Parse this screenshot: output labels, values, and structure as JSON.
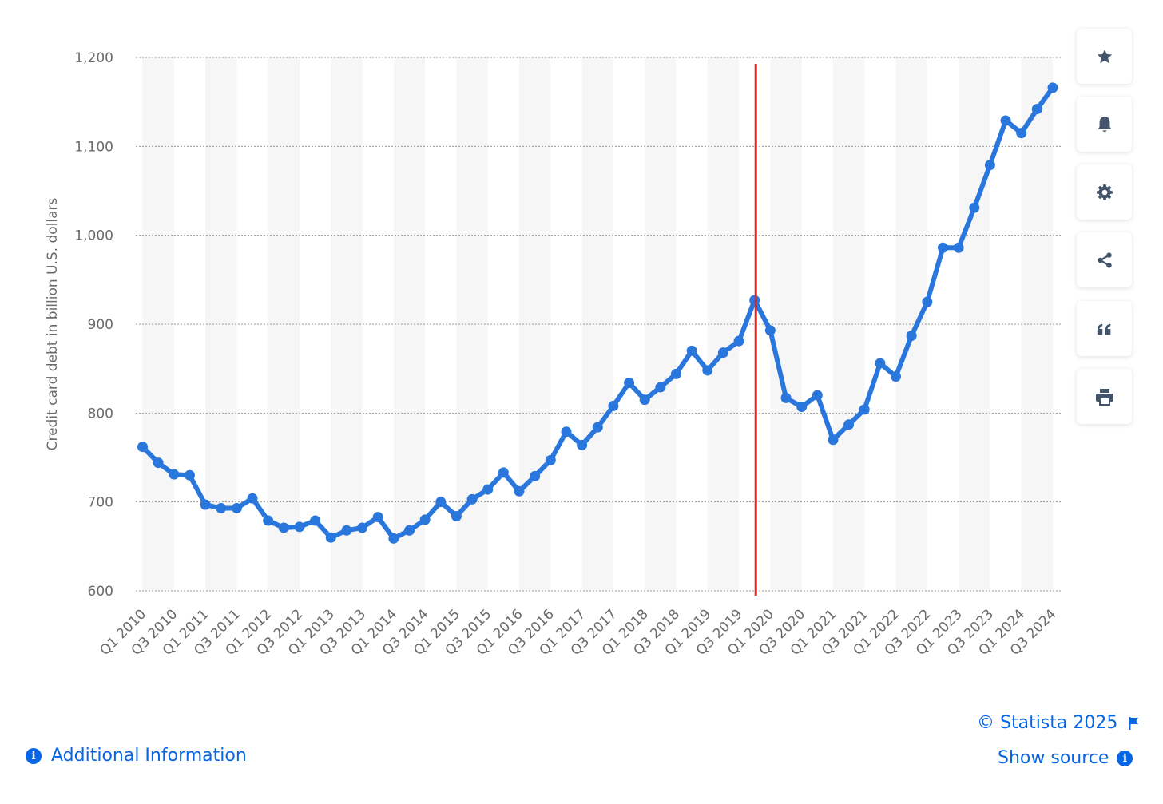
{
  "chart_data": {
    "type": "line",
    "ylabel": "Credit card debt in billion U.S. dollars",
    "xlabel": "",
    "ylim": [
      600,
      1200
    ],
    "yticks": [
      600,
      700,
      800,
      900,
      1000,
      1100,
      1200
    ],
    "ytick_labels": [
      "600",
      "700",
      "800",
      "900",
      "1,000",
      "1,100",
      "1,200"
    ],
    "grid": "horizontal dotted",
    "categories": [
      "Q1 2010",
      "Q2 2010",
      "Q3 2010",
      "Q4 2010",
      "Q1 2011",
      "Q2 2011",
      "Q3 2011",
      "Q4 2011",
      "Q1 2012",
      "Q2 2012",
      "Q3 2012",
      "Q4 2012",
      "Q1 2013",
      "Q2 2013",
      "Q3 2013",
      "Q4 2013",
      "Q1 2014",
      "Q2 2014",
      "Q3 2014",
      "Q4 2014",
      "Q1 2015",
      "Q2 2015",
      "Q3 2015",
      "Q4 2015",
      "Q1 2016",
      "Q2 2016",
      "Q3 2016",
      "Q4 2016",
      "Q1 2017",
      "Q2 2017",
      "Q3 2017",
      "Q4 2017",
      "Q1 2018",
      "Q2 2018",
      "Q3 2018",
      "Q4 2018",
      "Q1 2019",
      "Q2 2019",
      "Q3 2019",
      "Q4 2019",
      "Q1 2020",
      "Q2 2020",
      "Q3 2020",
      "Q4 2020",
      "Q1 2021",
      "Q2 2021",
      "Q3 2021",
      "Q4 2021",
      "Q1 2022",
      "Q2 2022",
      "Q3 2022",
      "Q4 2022",
      "Q1 2023",
      "Q2 2023",
      "Q3 2023",
      "Q4 2023",
      "Q1 2024",
      "Q2 2024",
      "Q3 2024"
    ],
    "xtick_labels": [
      "Q1 2010",
      "Q3 2010",
      "Q1 2011",
      "Q3 2011",
      "Q1 2012",
      "Q3 2012",
      "Q1 2013",
      "Q3 2013",
      "Q1 2014",
      "Q3 2014",
      "Q1 2015",
      "Q3 2015",
      "Q1 2016",
      "Q3 2016",
      "Q1 2017",
      "Q3 2017",
      "Q1 2018",
      "Q3 2018",
      "Q1 2019",
      "Q3 2019",
      "Q1 2020",
      "Q3 2020",
      "Q1 2021",
      "Q3 2021",
      "Q1 2022",
      "Q3 2022",
      "Q1 2023",
      "Q3 2023",
      "Q1 2024",
      "Q3 2024"
    ],
    "series": [
      {
        "values": [
          762,
          744,
          731,
          730,
          697,
          693,
          693,
          704,
          679,
          671,
          672,
          679,
          660,
          668,
          671,
          683,
          659,
          668,
          680,
          700,
          684,
          703,
          714,
          733,
          712,
          729,
          747,
          779,
          764,
          784,
          808,
          834,
          815,
          829,
          844,
          870,
          848,
          868,
          881,
          927,
          893,
          817,
          807,
          820,
          770,
          787,
          804,
          856,
          841,
          887,
          925,
          986,
          986,
          1031,
          1079,
          1129,
          1115,
          1142,
          1166
        ]
      }
    ],
    "marker_line": {
      "after_category": "Q4 2019",
      "color": "#e8221a"
    },
    "line_color": "#2976dc",
    "band_color": "#f6f6f6"
  },
  "toolbar": {
    "buttons": [
      {
        "icon": "star-icon"
      },
      {
        "icon": "bell-icon"
      },
      {
        "icon": "gear-icon"
      },
      {
        "icon": "share-icon"
      },
      {
        "icon": "quote-icon"
      },
      {
        "icon": "print-icon"
      }
    ]
  },
  "footer": {
    "copyright": "© Statista 2025",
    "show_source": "Show source",
    "additional_info": "Additional Information",
    "link_color": "#0666e5"
  }
}
